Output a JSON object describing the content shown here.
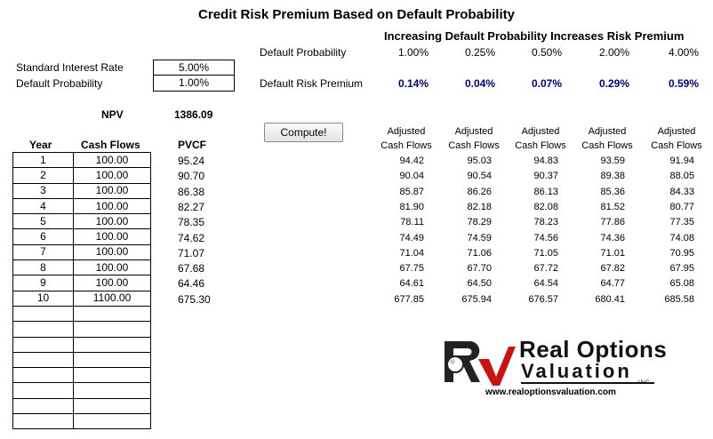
{
  "title": "Credit Risk Premium Based on Default Probability",
  "subtitle": "Increasing Default Probability Increases Risk Premium",
  "inputs": {
    "rate_label": "Standard Interest Rate",
    "rate_value": "5.00%",
    "prob_label": "Default Probability",
    "prob_value": "1.00%"
  },
  "npv": {
    "label": "NPV",
    "value": "1386.09"
  },
  "compute_button": "Compute!",
  "scenarios": {
    "prob_row_label": "Default Probability",
    "premium_row_label": "Default Risk Premium",
    "probabilities": [
      "1.00%",
      "0.25%",
      "0.50%",
      "2.00%",
      "4.00%"
    ],
    "premiums": [
      "0.14%",
      "0.04%",
      "0.07%",
      "0.29%",
      "0.59%"
    ]
  },
  "cashflow_table": {
    "headers": {
      "year": "Year",
      "cash_flows": "Cash Flows",
      "pvcf": "PVCF"
    },
    "rows": [
      {
        "year": "1",
        "cf": "100.00",
        "pvcf": "95.24"
      },
      {
        "year": "2",
        "cf": "100.00",
        "pvcf": "90.70"
      },
      {
        "year": "3",
        "cf": "100.00",
        "pvcf": "86.38"
      },
      {
        "year": "4",
        "cf": "100.00",
        "pvcf": "82.27"
      },
      {
        "year": "5",
        "cf": "100.00",
        "pvcf": "78.35"
      },
      {
        "year": "6",
        "cf": "100.00",
        "pvcf": "74.62"
      },
      {
        "year": "7",
        "cf": "100.00",
        "pvcf": "71.07"
      },
      {
        "year": "8",
        "cf": "100.00",
        "pvcf": "67.68"
      },
      {
        "year": "9",
        "cf": "100.00",
        "pvcf": "64.46"
      },
      {
        "year": "10",
        "cf": "1100.00",
        "pvcf": "675.30"
      }
    ],
    "empty_rows": 8
  },
  "adjusted": {
    "header_line1": "Adjusted",
    "header_line2": "Cash Flows",
    "columns": [
      [
        "94.42",
        "90.04",
        "85.87",
        "81.90",
        "78.11",
        "74.49",
        "71.04",
        "67.75",
        "64.61",
        "677.85"
      ],
      [
        "95.03",
        "90.54",
        "86.26",
        "82.18",
        "78.29",
        "74.59",
        "71.06",
        "67.70",
        "64.50",
        "675.94"
      ],
      [
        "94.83",
        "90.37",
        "86.13",
        "82.08",
        "78.23",
        "74.56",
        "71.05",
        "67.72",
        "64.54",
        "676.57"
      ],
      [
        "93.59",
        "89.38",
        "85.36",
        "81.52",
        "77.86",
        "74.36",
        "71.01",
        "67.82",
        "64.77",
        "680.41"
      ],
      [
        "91.94",
        "88.05",
        "84.33",
        "80.77",
        "77.35",
        "74.08",
        "70.95",
        "67.95",
        "65.08",
        "685.58"
      ]
    ]
  },
  "logo": {
    "line1": "Real Options",
    "line2": "Valuation",
    "inc": "INC",
    "url": "www.realoptionsvaluation.com",
    "colors": {
      "dark": "#222222",
      "red": "#cc1111"
    }
  }
}
